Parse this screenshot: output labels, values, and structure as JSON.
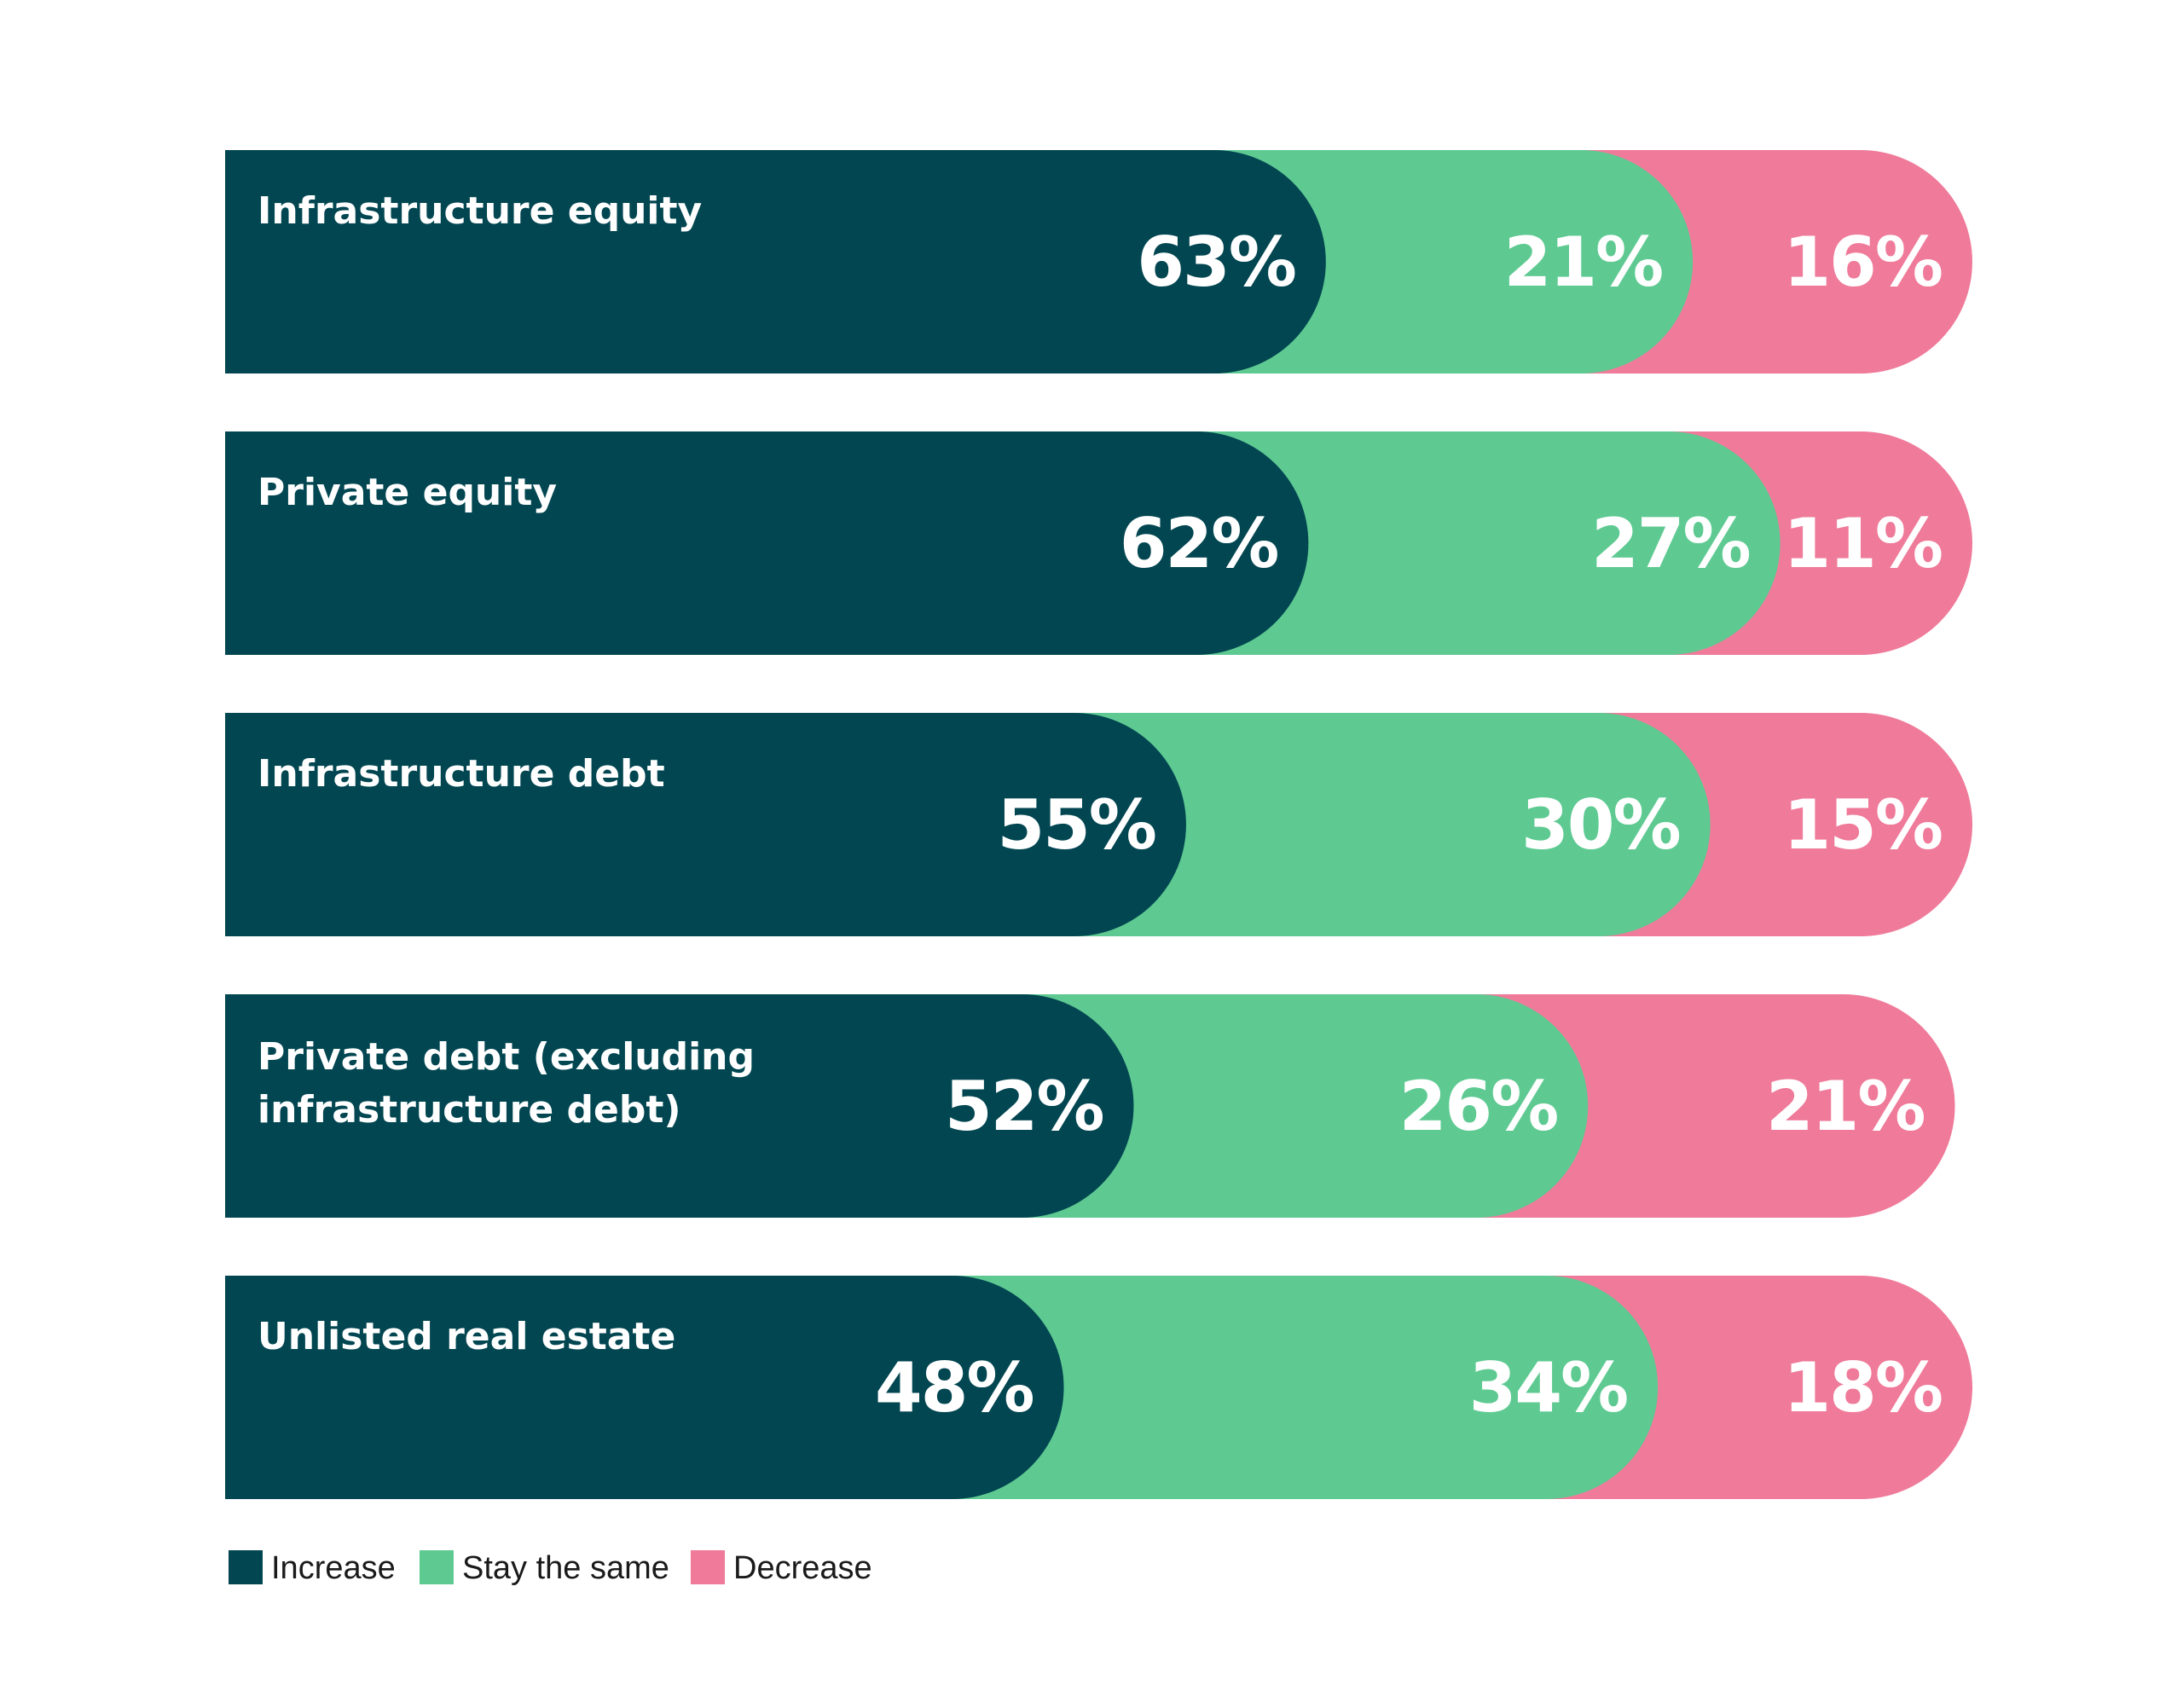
{
  "chart_data": {
    "type": "bar",
    "orientation": "horizontal",
    "stacked": true,
    "categories": [
      [
        "Infrastructure equity"
      ],
      [
        "Private equity"
      ],
      [
        "Infrastructure debt"
      ],
      [
        "Private debt (excluding",
        "infrastructure debt)"
      ],
      [
        "Unlisted real estate"
      ]
    ],
    "series": [
      {
        "name": "Increase",
        "color": "#024651",
        "values": [
          63,
          62,
          55,
          52,
          48
        ],
        "labels": [
          "63%",
          "62%",
          "55%",
          "52%",
          "48%"
        ]
      },
      {
        "name": "Stay the same",
        "color": "#5ECA92",
        "values": [
          21,
          27,
          30,
          26,
          34
        ],
        "labels": [
          "21%",
          "27%",
          "30%",
          "26%",
          "34%"
        ]
      },
      {
        "name": "Decrease",
        "color": "#EF7A99",
        "values": [
          16,
          11,
          15,
          21,
          18
        ],
        "labels": [
          "16%",
          "11%",
          "15%",
          "21%",
          "18%"
        ]
      }
    ],
    "xlim": [
      0,
      100
    ],
    "legend_position": "bottom-left",
    "grid": false
  }
}
